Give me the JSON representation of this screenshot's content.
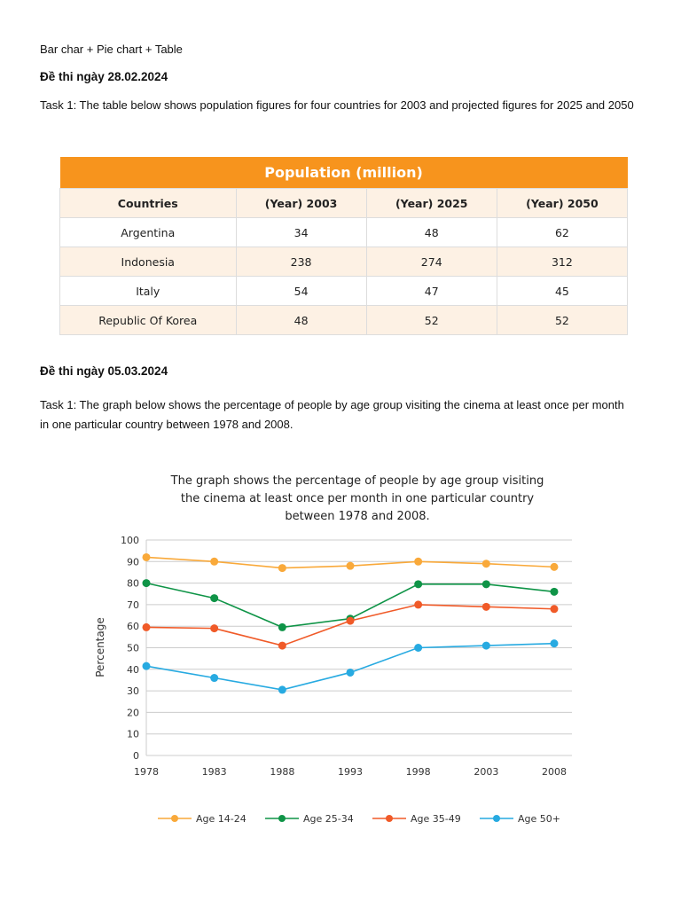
{
  "intro": "Bar char + Pie chart + Table",
  "section1": {
    "heading": "Đề thi ngày 28.02.2024",
    "task": "Task 1: The table below shows population figures for four countries for 2003 and projected figures for 2025 and 2050"
  },
  "table": {
    "title": "Population (million)",
    "headers": [
      "Countries",
      "(Year) 2003",
      "(Year) 2025",
      "(Year) 2050"
    ],
    "rows": [
      [
        "Argentina",
        "34",
        "48",
        "62"
      ],
      [
        "Indonesia",
        "238",
        "274",
        "312"
      ],
      [
        "Italy",
        "54",
        "47",
        "45"
      ],
      [
        "Republic Of Korea",
        "48",
        "52",
        "52"
      ]
    ]
  },
  "section2": {
    "heading": "Đề thi ngày 05.03.2024",
    "task": "Task 1: The graph below shows the percentage of people by age group visiting the cinema at least once per month in one particular country between 1978 and 2008."
  },
  "chart_data": {
    "type": "line",
    "title": [
      "The graph shows the percentage of people by age group visiting",
      "the cinema at least once per month in one particular country",
      "between 1978 and 2008."
    ],
    "ylabel": "Percentage",
    "xlabel": "",
    "x": [
      "1978",
      "1983",
      "1988",
      "1993",
      "1998",
      "2003",
      "2008"
    ],
    "ylim": [
      0,
      100
    ],
    "yticks": [
      0,
      10,
      20,
      30,
      40,
      50,
      60,
      70,
      80,
      90,
      100
    ],
    "grid": true,
    "legend": "bottom",
    "series": [
      {
        "name": "Age 14-24",
        "color": "#f9a93a",
        "values": [
          92,
          90,
          87,
          88,
          90,
          89,
          87.5
        ]
      },
      {
        "name": "Age 25-34",
        "color": "#0f9447",
        "values": [
          80,
          73,
          59.5,
          63.5,
          79.5,
          79.5,
          76
        ]
      },
      {
        "name": "Age 35-49",
        "color": "#f05a28",
        "values": [
          59.5,
          59,
          51,
          62.5,
          70,
          69,
          68
        ]
      },
      {
        "name": "Age 50+",
        "color": "#27aae1",
        "values": [
          41.5,
          36,
          30.5,
          38.5,
          50,
          51,
          52
        ]
      }
    ]
  }
}
